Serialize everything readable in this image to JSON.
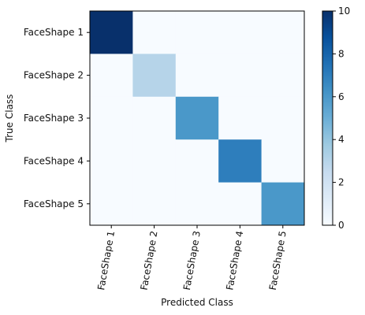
{
  "chart_data": {
    "type": "heatmap",
    "title": "",
    "xlabel": "Predicted Class",
    "ylabel": "True Class",
    "x_categories": [
      "FaceShape 1",
      "FaceShape 2",
      "FaceShape 3",
      "FaceShape 4",
      "FaceShape 5"
    ],
    "y_categories": [
      "FaceShape 1",
      "FaceShape 2",
      "FaceShape 3",
      "FaceShape 4",
      "FaceShape 5"
    ],
    "values": [
      [
        10,
        0,
        0,
        0,
        0
      ],
      [
        0,
        3,
        0,
        0,
        0
      ],
      [
        0,
        0,
        6,
        0,
        0
      ],
      [
        0,
        0,
        0,
        7,
        0
      ],
      [
        0,
        0,
        0,
        0,
        6
      ]
    ],
    "colorbar": {
      "min": 0,
      "max": 10,
      "ticks": [
        "0",
        "2",
        "4",
        "6",
        "8",
        "10"
      ],
      "colormap": "Blues",
      "color_low": "#f7fbff",
      "color_high": "#08306b"
    },
    "grid": false,
    "legend": "none"
  }
}
